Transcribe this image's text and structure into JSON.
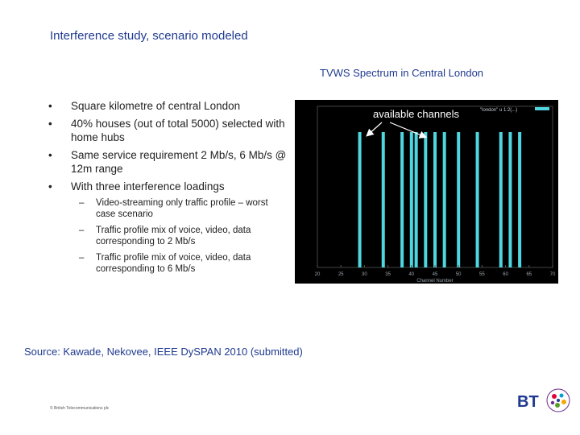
{
  "header": {
    "title": "Interference study, scenario modeled"
  },
  "bullets": [
    {
      "text": "Square kilometre of central London"
    },
    {
      "text": "40% houses (out of total 5000) selected with home hubs"
    },
    {
      "text": "Same service requirement 2 Mb/s, 6 Mb/s @ 12m range"
    },
    {
      "text": "With three interference loadings"
    }
  ],
  "bullet_glyph": "•",
  "sub_glyph": "–",
  "sub_bullets": [
    {
      "text": "Video-streaming only traffic profile – worst case scenario"
    },
    {
      "text": "Traffic profile mix of voice, video, data corresponding to 2 Mb/s"
    },
    {
      "text": "Traffic profile mix of voice, video, data corresponding to 6 Mb/s"
    }
  ],
  "source": "Source:  Kawade, Nekovee,  IEEE DySPAN 2010 (submitted)",
  "copyright": "© British Telecommunications plc",
  "logo": {
    "text": "BT",
    "icon": "bt-globe-icon",
    "color": "#1f3a8f"
  },
  "chart_data": {
    "type": "bar",
    "title": "TVWS Spectrum  in Central London",
    "annotation": "available channels",
    "legend": {
      "label": "\"london\" u 1:2(...)",
      "placement": "top-right"
    },
    "xlabel": "Channel Number",
    "xlim": [
      20,
      70
    ],
    "x_ticks": [
      "20",
      "25",
      "30",
      "35",
      "40",
      "45",
      "50",
      "55",
      "60",
      "65",
      "70"
    ],
    "x": [
      29,
      34,
      38,
      40,
      41,
      43,
      45,
      47,
      50,
      54,
      59,
      61,
      63
    ],
    "values": [
      1,
      1,
      1,
      1,
      1,
      1,
      1,
      1,
      1,
      1,
      1,
      1,
      1
    ],
    "bar_color": "#4fd6e0",
    "background_color": "#000000",
    "grid": false
  }
}
